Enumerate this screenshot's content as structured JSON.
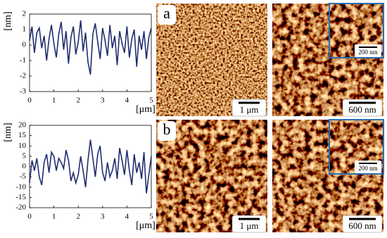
{
  "chart_data": [
    {
      "type": "line",
      "color": "#1f2d6e",
      "xlabel": "[μm]",
      "ylabel": "[nm]",
      "xlim": [
        0,
        5
      ],
      "ylim": [
        -3,
        2
      ],
      "xticks": [
        0,
        1,
        2,
        3,
        4,
        5
      ],
      "yticks": [
        -3,
        -2,
        -1,
        0,
        1,
        2
      ],
      "grid": false,
      "x": [
        0,
        0.1,
        0.2,
        0.3,
        0.4,
        0.5,
        0.6,
        0.7,
        0.8,
        0.9,
        1,
        1.1,
        1.2,
        1.3,
        1.4,
        1.5,
        1.6,
        1.7,
        1.8,
        1.9,
        2,
        2.1,
        2.2,
        2.3,
        2.4,
        2.5,
        2.6,
        2.7,
        2.8,
        2.9,
        3,
        3.1,
        3.2,
        3.3,
        3.4,
        3.5,
        3.6,
        3.7,
        3.8,
        3.9,
        4,
        4.1,
        4.2,
        4.3,
        4.4,
        4.5,
        4.6,
        4.7,
        4.8,
        4.9,
        5
      ],
      "values": [
        0.3,
        1.2,
        -0.5,
        0.8,
        1.1,
        -0.2,
        0.6,
        -1.0,
        0.4,
        1.3,
        0.1,
        -0.8,
        0.7,
        1.5,
        -0.3,
        0.9,
        -1.2,
        0.5,
        1.2,
        -0.6,
        0.2,
        1.6,
        -0.4,
        0.8,
        -1.1,
        -1.9,
        0.7,
        1.4,
        0.2,
        -0.9,
        1.1,
        0.3,
        -0.7,
        1.3,
        -0.2,
        0.6,
        -1.3,
        0.9,
        0.1,
        -0.5,
        1.2,
        -0.8,
        0.4,
        1.0,
        -1.4,
        0.6,
        -0.3,
        0.9,
        -0.9,
        0.5,
        1.1
      ]
    },
    {
      "type": "line",
      "color": "#1f2d6e",
      "xlabel": "[μm]",
      "ylabel": "[nm]",
      "xlim": [
        0,
        5
      ],
      "ylim": [
        -20,
        20
      ],
      "xticks": [
        0,
        1,
        2,
        3,
        4,
        5
      ],
      "yticks": [
        -20,
        -15,
        -10,
        -5,
        0,
        5,
        10,
        15,
        20
      ],
      "grid": false,
      "x": [
        0,
        0.1,
        0.2,
        0.3,
        0.4,
        0.5,
        0.6,
        0.7,
        0.8,
        0.9,
        1,
        1.1,
        1.2,
        1.3,
        1.4,
        1.5,
        1.6,
        1.7,
        1.8,
        1.9,
        2,
        2.1,
        2.2,
        2.3,
        2.4,
        2.5,
        2.6,
        2.7,
        2.8,
        2.9,
        3,
        3.1,
        3.2,
        3.3,
        3.4,
        3.5,
        3.6,
        3.7,
        3.8,
        3.9,
        4,
        4.1,
        4.2,
        4.3,
        4.4,
        4.5,
        4.6,
        4.7,
        4.8,
        4.9,
        5
      ],
      "values": [
        -8,
        3,
        -2,
        4,
        -5,
        -9,
        2,
        6,
        -3,
        7,
        5,
        -2,
        4,
        2,
        -1,
        8,
        3,
        -7,
        -3,
        -8,
        -4,
        5,
        -2,
        -10,
        3,
        13,
        4,
        -5,
        6,
        10,
        -3,
        -7,
        2,
        -5,
        -2,
        4,
        -6,
        9,
        3,
        -4,
        8,
        -2,
        -9,
        6,
        -3,
        2,
        -6,
        7,
        -13,
        -4,
        5
      ]
    }
  ],
  "panels": [
    {
      "label": "a",
      "scale_left": "1 μm",
      "scale_right": "600 nm",
      "scale_inset": "200 nm"
    },
    {
      "label": "b",
      "scale_left": "1 μm",
      "scale_right": "600 nm",
      "scale_inset": "200 nm"
    }
  ]
}
